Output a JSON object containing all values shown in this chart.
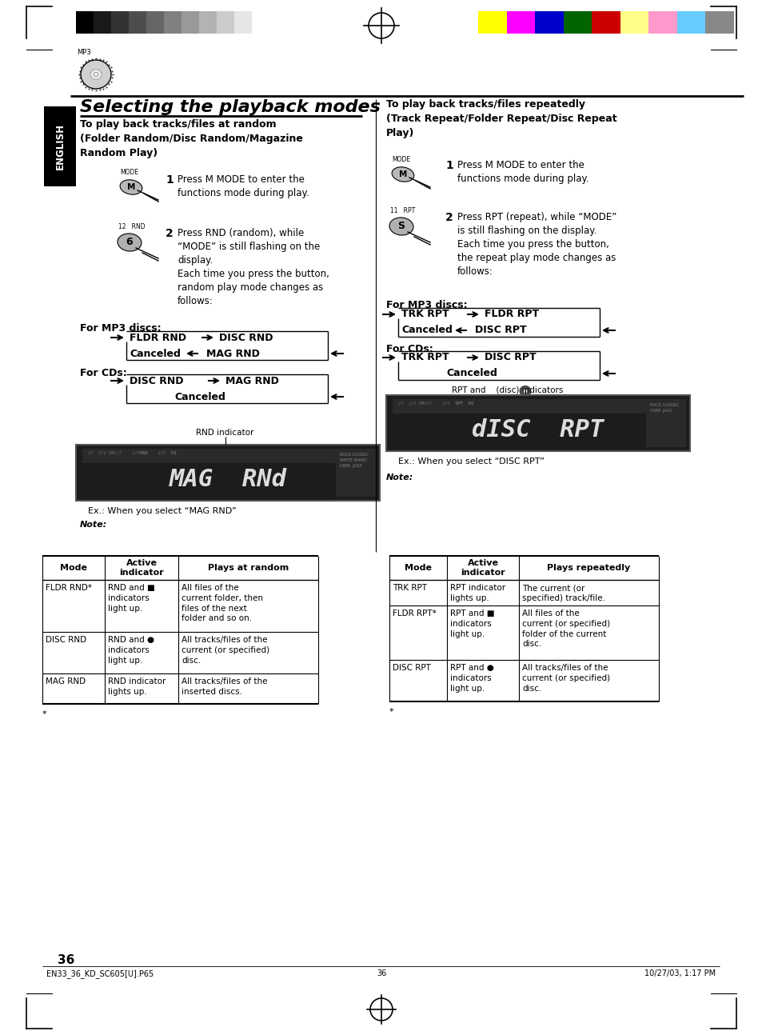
{
  "title": "Selecting the playback modes",
  "bg_color": "#ffffff",
  "page_number": "36",
  "footer_left": "EN33_36_KD_SC605[U].P65",
  "footer_center": "36",
  "footer_right": "10/27/03, 1:17 PM",
  "left_section_heading": "To play back tracks/files at random\n(Folder Random/Disc Random/Magazine\nRandom Play)",
  "right_section_heading": "To play back tracks/files repeatedly\n(Track Repeat/Folder Repeat/Disc Repeat\nPlay)",
  "step1_text": "Press M MODE to enter the\nfunctions mode during play.",
  "step2_left_text": "Press RND (random), while\n“MODE” is still flashing on the\ndisplay.\nEach time you press the button,\nrandom play mode changes as\nfollows:",
  "step2_right_text": "Press RPT (repeat), while “MODE”\nis still flashing on the display.\nEach time you press the button,\nthe repeat play mode changes as\nfollows:",
  "for_mp3_label": "For MP3 discs:",
  "for_cd_label": "For CDs:",
  "ex_left": "Ex.: When you select “MAG RND”",
  "ex_right": "Ex.: When you select “DISC RPT”",
  "rnd_indicator_label": "RND indicator",
  "rpt_indicator_label": "RPT and    (disc) indicators",
  "note_left": "Note:",
  "note_right": "Note:",
  "table1_headers": [
    "Mode",
    "Active\nindicator",
    "Plays at random"
  ],
  "table1_rows": [
    [
      "FLDR RND*",
      "RND and ■\nindicators\nlight up.",
      "All files of the\ncurrent folder, then\nfiles of the next\nfolder and so on."
    ],
    [
      "DISC RND",
      "RND and ●\nindicators\nlight up.",
      "All tracks/files of the\ncurrent (or specified)\ndisc."
    ],
    [
      "MAG RND",
      "RND indicator\nlights up.",
      "All tracks/files of the\ninserted discs."
    ]
  ],
  "table2_headers": [
    "Mode",
    "Active\nindicator",
    "Plays repeatedly"
  ],
  "table2_rows": [
    [
      "TRK RPT",
      "RPT indicator\nlights up.",
      "The current (or\nspecified) track/file."
    ],
    [
      "FLDR RPT*",
      "RPT and ■\nindicators\nlight up.",
      "All files of the\ncurrent (or specified)\nfolder of the current\ndisc."
    ],
    [
      "DISC RPT",
      "RPT and ●\nindicators\nlight up.",
      "All tracks/files of the\ncurrent (or specified)\ndisc."
    ]
  ],
  "asterisk_note_left": "*",
  "asterisk_note_right": "*",
  "color_bar_left": [
    "#000000",
    "#1a1a1a",
    "#333333",
    "#4d4d4d",
    "#666666",
    "#808080",
    "#999999",
    "#b3b3b3",
    "#cccccc",
    "#e6e6e6",
    "#ffffff"
  ],
  "color_bar_right": [
    "#ffff00",
    "#ff00ff",
    "#0000cc",
    "#006400",
    "#cc0000",
    "#ffff88",
    "#ff99cc",
    "#66ccff",
    "#888888"
  ]
}
